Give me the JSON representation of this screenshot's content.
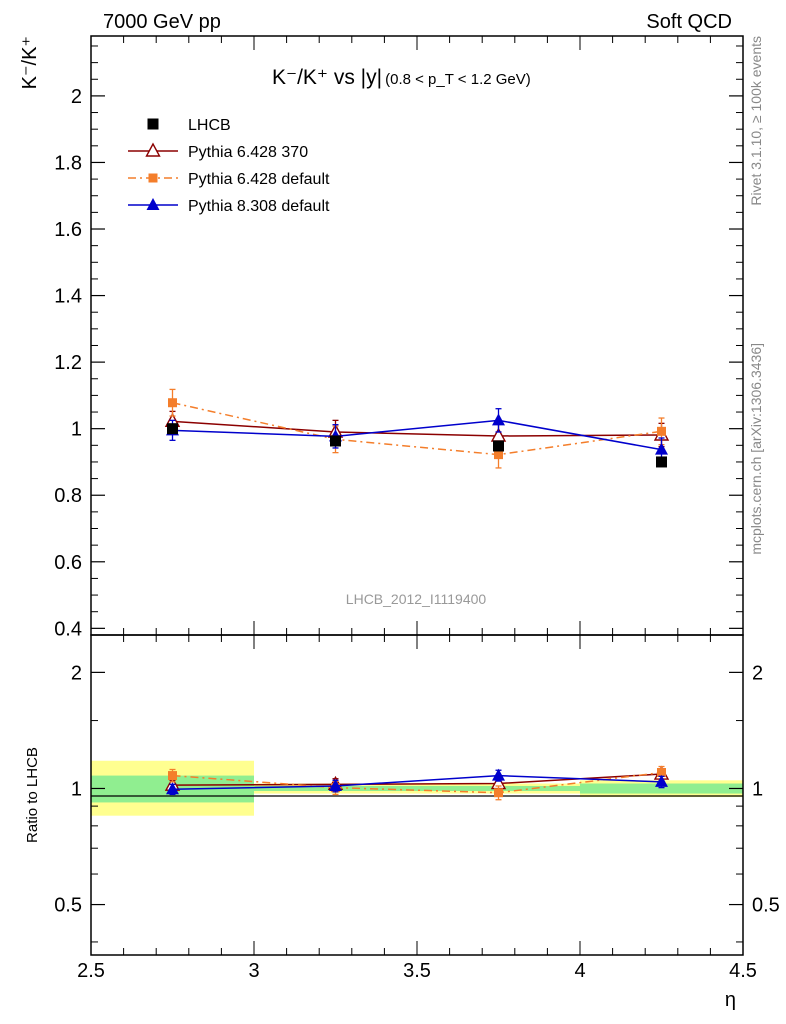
{
  "header": {
    "left": "7000 GeV pp",
    "right": "Soft QCD"
  },
  "side": {
    "top": "Rivet 3.1.10, ≥ 100k events",
    "bottom": "mcplots.cern.ch [arXiv:1306.3436]"
  },
  "watermark": "LHCB_2012_I1119400",
  "chart_data": [
    {
      "type": "scatter",
      "panel": "main",
      "title_main": "K⁻/K⁺ vs |y|",
      "title_cut": "(0.8 < p_T < 1.2 GeV)",
      "ylabel": "K⁻/K⁺",
      "xlabel": "η",
      "xlim": [
        2.5,
        4.5
      ],
      "ylim": [
        0.38,
        2.18
      ],
      "y_ticks": [
        0.4,
        0.6,
        0.8,
        1,
        1.2,
        1.4,
        1.6,
        1.8,
        2
      ],
      "y_tick_labels": [
        "0.4",
        "0.6",
        "0.8",
        "1",
        "1.2",
        "1.4",
        "1.6",
        "1.8",
        "2"
      ],
      "x_ticks": [
        2.5,
        3,
        3.5,
        4,
        4.5
      ],
      "x_tick_labels": [
        "2.5",
        "3",
        "3.5",
        "4",
        "4.5"
      ],
      "x": [
        2.75,
        3.25,
        3.75,
        4.25
      ],
      "legend_position": "top-left",
      "series": [
        {
          "name": "LHCB",
          "style": "data",
          "color": "#000000",
          "values": [
            1.0,
            0.963,
            0.948,
            0.9
          ],
          "errors": [
            0.012,
            0.012,
            0.012,
            0.012
          ]
        },
        {
          "name": "Pythia 6.428 370",
          "style": "open-triangle",
          "color": "#8b0000",
          "values": [
            1.022,
            0.99,
            0.978,
            0.981
          ],
          "errors": [
            0.03,
            0.035,
            0.035,
            0.035
          ]
        },
        {
          "name": "Pythia 6.428 default",
          "style": "dashdot-square",
          "color": "#f47e2b",
          "values": [
            1.078,
            0.968,
            0.922,
            0.992
          ],
          "errors": [
            0.04,
            0.04,
            0.04,
            0.04
          ]
        },
        {
          "name": "Pythia 8.308 default",
          "style": "filled-triangle",
          "color": "#0000cc",
          "values": [
            0.995,
            0.977,
            1.025,
            0.937
          ],
          "errors": [
            0.03,
            0.035,
            0.035,
            0.035
          ]
        }
      ]
    },
    {
      "type": "scatter",
      "panel": "ratio",
      "ylabel": "Ratio to LHCB",
      "xlim": [
        2.5,
        4.5
      ],
      "ylim": [
        0.37,
        2.5
      ],
      "y_scale": "log",
      "y_ticks": [
        0.5,
        1,
        2
      ],
      "y_tick_labels": [
        "0.5",
        "1",
        "2"
      ],
      "x": [
        2.75,
        3.25,
        3.75,
        4.25
      ],
      "bands": [
        {
          "xlo": 2.5,
          "xhi": 3.0,
          "inner": [
            0.92,
            1.08
          ],
          "outer": [
            0.85,
            1.18
          ]
        },
        {
          "xlo": 3.0,
          "xhi": 3.5,
          "inner": [
            0.985,
            1.015
          ],
          "outer": [
            0.97,
            1.03
          ]
        },
        {
          "xlo": 3.5,
          "xhi": 4.0,
          "inner": [
            0.985,
            1.015
          ],
          "outer": [
            0.97,
            1.03
          ]
        },
        {
          "xlo": 4.0,
          "xhi": 4.5,
          "inner": [
            0.97,
            1.03
          ],
          "outer": [
            0.95,
            1.05
          ]
        }
      ],
      "series": [
        {
          "name": "Pythia 6.428 370",
          "style": "open-triangle",
          "color": "#8b0000",
          "values": [
            1.02,
            1.025,
            1.03,
            1.09
          ],
          "errors": [
            0.03,
            0.035,
            0.035,
            0.035
          ]
        },
        {
          "name": "Pythia 6.428 default",
          "style": "dashdot-square",
          "color": "#f47e2b",
          "values": [
            1.08,
            1.005,
            0.975,
            1.1
          ],
          "errors": [
            0.04,
            0.04,
            0.04,
            0.04
          ]
        },
        {
          "name": "Pythia 8.308 default",
          "style": "filled-triangle",
          "color": "#0000cc",
          "values": [
            0.995,
            1.015,
            1.08,
            1.04
          ],
          "errors": [
            0.03,
            0.035,
            0.035,
            0.035
          ]
        }
      ],
      "colors": {
        "inner_band": "#90ee90",
        "outer_band": "#ffff90"
      }
    }
  ]
}
